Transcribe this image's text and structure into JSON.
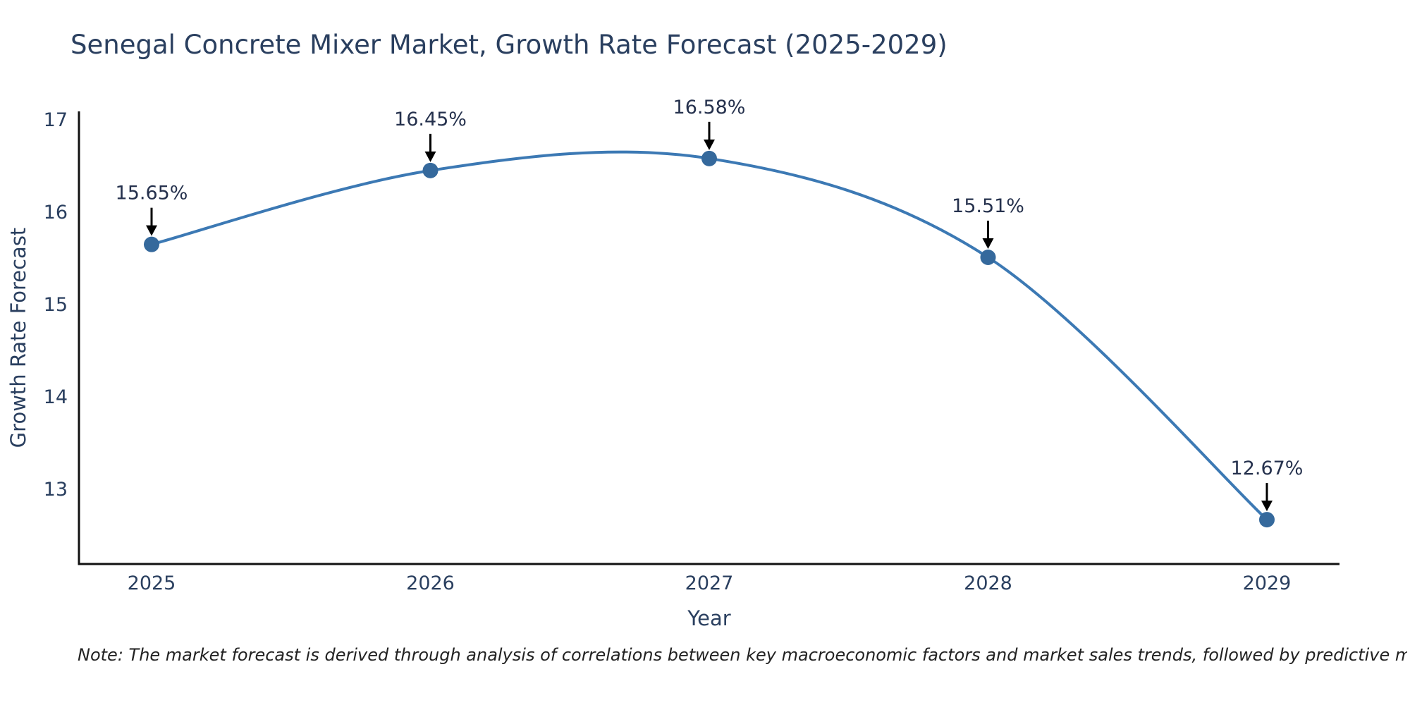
{
  "chart_data": {
    "type": "line",
    "title": "Senegal Concrete Mixer Market, Growth Rate Forecast (2025-2029)",
    "xlabel": "Year",
    "ylabel": "Growth Rate Forecast",
    "x": [
      2025,
      2026,
      2027,
      2028,
      2029
    ],
    "series": [
      {
        "name": "Growth Rate Forecast",
        "values": [
          15.65,
          16.45,
          16.58,
          15.51,
          12.67
        ],
        "point_labels": [
          "15.65%",
          "16.45%",
          "16.58%",
          "15.51%",
          "12.67%"
        ]
      }
    ],
    "yticks": [
      13,
      14,
      15,
      16,
      17
    ],
    "ylim": [
      12.19,
      17.09
    ],
    "grid": false,
    "legend_position": "none",
    "line_shape": "spline",
    "note": "Note: The market forecast is derived through analysis of correlations between key macroeconomic factors and market sales trends, followed by predictive modeling to project future sales",
    "colors": {
      "line": "#3c79b4",
      "marker": "#35699c",
      "axis": "#111111",
      "text": "#2a3f5f",
      "annotation_text": "#25314d",
      "arrow": "#000000",
      "background": "#ffffff"
    }
  }
}
